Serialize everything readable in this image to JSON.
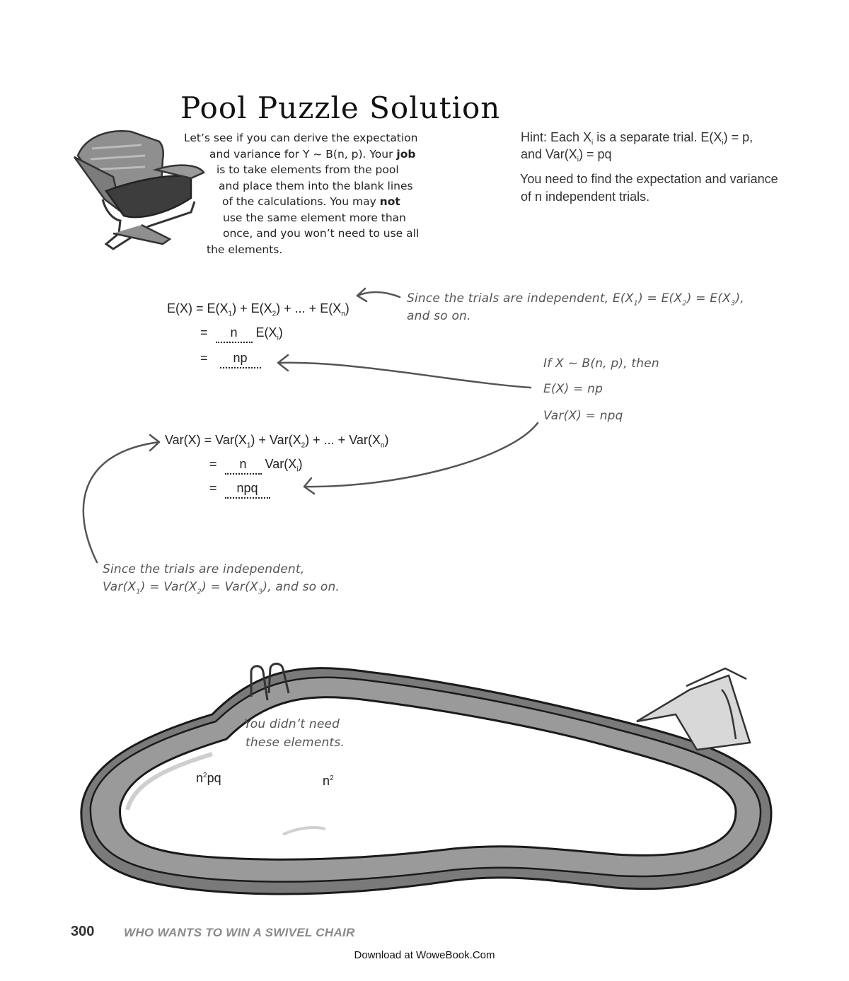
{
  "title": "Pool Puzzle Solution",
  "intro_lines": [
    "Let’s see if you can derive the expectation",
    "and variance for Y ~ B(n, p). Your ",
    "is to take elements from the pool",
    "and place them into the blank lines",
    "of the calculations. You may ",
    "use the same element more than",
    "once, and you won’t need to use all",
    "the elements."
  ],
  "intro_bold": {
    "job": "job",
    "not": "not"
  },
  "hint": {
    "line1_a": "Hint: Each X",
    "line1_sub": "i",
    "line1_b": " is a separate trial. E(X",
    "line1_c": ") = p,",
    "line2_a": "and Var(X",
    "line2_b": ") = pq",
    "line3": "You need to find the expectation and variance",
    "line4": "of n independent trials."
  },
  "expectation": {
    "line1": {
      "lhs": "E(X) = E(X",
      "s1": "1",
      "mid1": ") + E(X",
      "s2": "2",
      "mid2": ") + ... + E(X",
      "s3": "n",
      "end": ")"
    },
    "line2": {
      "eq": "=",
      "blank": "n",
      "term": "E(X",
      "sub": "i",
      "end": ")"
    },
    "line3": {
      "eq": "=",
      "blank": "np"
    }
  },
  "variance": {
    "line1": {
      "lhs": "Var(X) = Var(X",
      "s1": "1",
      "mid1": ") + Var(X",
      "s2": "2",
      "mid2": ") + ... + Var(X",
      "s3": "n",
      "end": ")"
    },
    "line2": {
      "eq": "=",
      "blank": "n",
      "term": "Var(X",
      "sub": "i",
      "end": ")"
    },
    "line3": {
      "eq": "=",
      "blank": "npq"
    }
  },
  "notes": {
    "exp_independent_1": "Since the trials are independent, E(X",
    "exp_independent_1b": ") = E(X",
    "exp_independent_1c": ") = E(X",
    "exp_independent_1d": "),",
    "exp_independent_2": "and so on.",
    "binomial_1": "If X ~ B(n, p), then",
    "binomial_2": "E(X) = np",
    "binomial_3": "Var(X) = npq",
    "var_independent_1": "Since the trials are independent,",
    "var_independent_2a": "Var(X",
    "var_independent_2b": ") = Var(X",
    "var_independent_2c": ") = Var(X",
    "var_independent_2d": "), and so on.",
    "pool_note_1": "You didn’t need",
    "pool_note_2": "these elements."
  },
  "pool_elements": [
    {
      "base": "n",
      "sup": "2",
      "rest": "pq"
    },
    {
      "base": "n",
      "sup": "2",
      "rest": ""
    }
  ],
  "footer": {
    "page_number": "300",
    "chapter": "WHO WANTS TO WIN A SWIVEL CHAIR",
    "download": "Download at WoweBook.Com"
  }
}
